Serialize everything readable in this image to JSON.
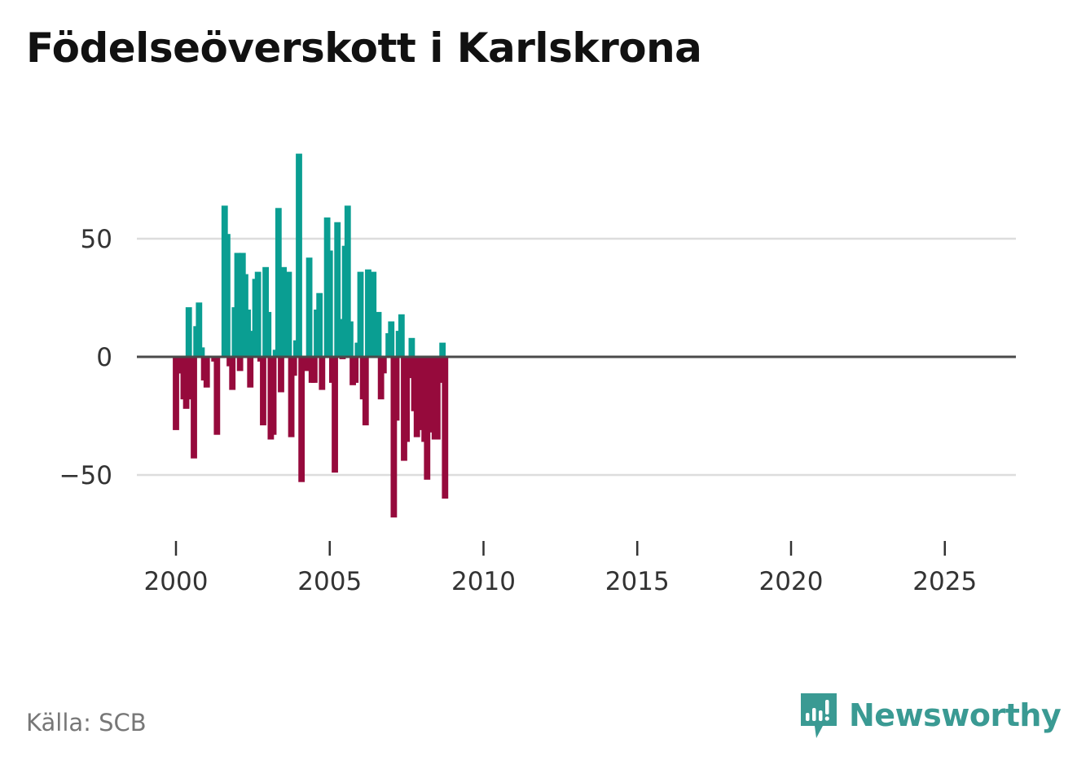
{
  "title": "Födelseöverskott i Karlskrona",
  "source": "Källa: SCB",
  "brand": "Newsworthy",
  "colors": {
    "positive": "#0a9e92",
    "negative": "#960a3c",
    "zero_line": "#4a4a4a",
    "grid": "#dddddd",
    "brand": "#3a9a93"
  },
  "chart_data": {
    "type": "bar",
    "title": "Födelseöverskott i Karlskrona",
    "xlabel": "",
    "ylabel": "",
    "ylim": [
      -75,
      90
    ],
    "yticks": [
      50,
      0,
      -50
    ],
    "ytick_labels": [
      "50",
      "0",
      "−50"
    ],
    "xlim": [
      1999.2,
      2027.4
    ],
    "xticks": [
      2000,
      2005,
      2010,
      2015,
      2020,
      2025
    ],
    "xtick_labels": [
      "2000",
      "2005",
      "2010",
      "2015",
      "2020",
      "2025"
    ],
    "frequency": "monthly",
    "start_year": 2000,
    "start_month": 1,
    "values": [
      -31,
      -7,
      -7,
      -18,
      -22,
      21,
      -18,
      -43,
      13,
      23,
      4,
      -10,
      -13,
      0,
      0,
      -2,
      -33,
      0,
      0,
      64,
      52,
      -4,
      -14,
      21,
      44,
      -6,
      44,
      35,
      20,
      -13,
      11,
      33,
      36,
      -2,
      -29,
      38,
      19,
      -35,
      -33,
      3,
      63,
      -15,
      38,
      24,
      36,
      -34,
      -8,
      7,
      86,
      -53,
      0,
      -6,
      42,
      -11,
      -11,
      20,
      27,
      -14,
      0,
      59,
      45,
      -11,
      -49,
      57,
      16,
      -1,
      47,
      64,
      15,
      -12,
      -11,
      6,
      36,
      -18,
      -29,
      37,
      32,
      36,
      10,
      19,
      -18,
      -7,
      0,
      10,
      15,
      -68,
      -27,
      11,
      18,
      -44,
      -36,
      -9,
      8,
      -23,
      -34,
      -16,
      -31,
      -36,
      -52,
      -21,
      -32,
      -35,
      -35,
      -11,
      6,
      -60
    ]
  }
}
